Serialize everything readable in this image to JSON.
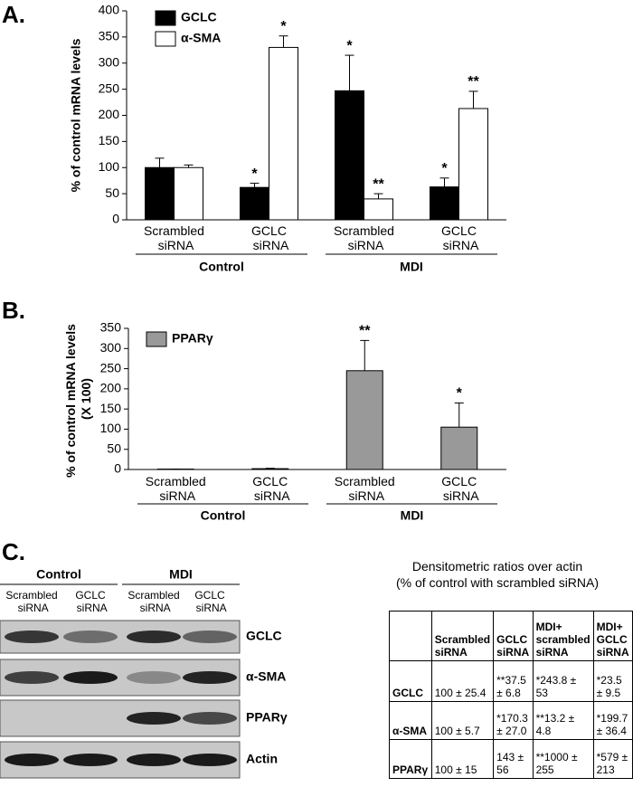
{
  "panels": [
    "A.",
    "B.",
    "C."
  ],
  "chart_data": [
    {
      "type": "bar",
      "ylabel": "% of control mRNA levels",
      "categories": [
        "Scrambled siRNA",
        "GCLC siRNA",
        "Scrambled siRNA",
        "GCLC siRNA"
      ],
      "groups": [
        "Control",
        "MDI"
      ],
      "series": [
        {
          "name": "GCLC",
          "color": "#000000",
          "values": [
            100,
            62,
            247,
            63
          ],
          "errors": [
            18,
            8,
            68,
            17
          ],
          "annotations": [
            null,
            "*",
            "*",
            "*"
          ]
        },
        {
          "name": "α-SMA",
          "color": "#ffffff",
          "values": [
            100,
            330,
            40,
            213
          ],
          "errors": [
            5,
            22,
            10,
            33
          ],
          "annotations": [
            null,
            "*",
            "**",
            "**"
          ]
        }
      ],
      "ylim": [
        0,
        400
      ],
      "yticks": [
        0,
        50,
        100,
        150,
        200,
        250,
        300,
        350,
        400
      ],
      "legend": "upper left"
    },
    {
      "type": "bar",
      "ylabel": "% of control mRNA levels (X 100)",
      "categories": [
        "Scrambled siRNA",
        "GCLC siRNA",
        "Scrambled siRNA",
        "GCLC siRNA"
      ],
      "groups": [
        "Control",
        "MDI"
      ],
      "series": [
        {
          "name": "PPARγ",
          "color": "#999999",
          "values": [
            1,
            2,
            245,
            105
          ],
          "errors": [
            0,
            1,
            75,
            60
          ],
          "annotations": [
            null,
            null,
            "**",
            "*"
          ]
        }
      ],
      "ylim": [
        0,
        350
      ],
      "yticks": [
        0,
        50,
        100,
        150,
        200,
        250,
        300,
        350
      ],
      "legend": "upper left"
    }
  ],
  "blot": {
    "groups": [
      "Control",
      "MDI"
    ],
    "lanes": [
      "Scrambled siRNA",
      "GCLC siRNA",
      "Scrambled siRNA",
      "GCLC siRNA"
    ],
    "rows": [
      "GCLC",
      "α-SMA",
      "PPARγ",
      "Actin"
    ]
  },
  "table": {
    "title": "Densitometric ratios over actin",
    "subtitle": "(% of control with scrambled siRNA)",
    "columns": [
      "Scrambled siRNA",
      "GCLC siRNA",
      "MDI+ scrambled siRNA",
      "MDI+ GCLC siRNA"
    ],
    "rows": [
      {
        "label": "GCLC",
        "cells": [
          "100 ± 25.4",
          "**37.5 ± 6.8",
          "*243.8 ± 53",
          "*23.5 ± 9.5"
        ]
      },
      {
        "label": "α-SMA",
        "cells": [
          "100 ± 5.7",
          "*170.3 ± 27.0",
          "**13.2 ± 4.8",
          "*199.7 ± 36.4"
        ]
      },
      {
        "label": "PPARγ",
        "cells": [
          "100 ± 15",
          "143 ± 56",
          "**1000 ± 255",
          "*579 ± 213"
        ]
      }
    ]
  }
}
